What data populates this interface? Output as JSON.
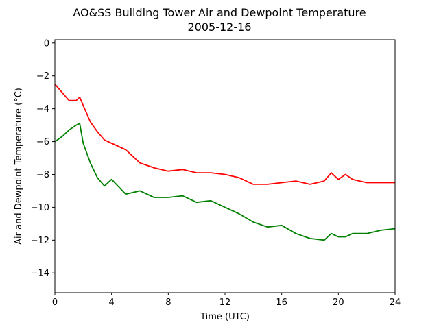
{
  "chart_data": {
    "type": "line",
    "title": "AO&SS Building Tower Air and Dewpoint Temperature",
    "subtitle": "2005-12-16",
    "xlabel": "Time (UTC)",
    "ylabel": "Air and Dewpoint Temperature (°C)",
    "xlim": [
      0,
      24
    ],
    "ylim": [
      -15.2,
      0.2
    ],
    "xticks": [
      0,
      4,
      8,
      12,
      16,
      20,
      24
    ],
    "yticks": [
      0,
      -2,
      -4,
      -6,
      -8,
      -10,
      -12,
      -14
    ],
    "grid": false,
    "x": [
      0,
      0.5,
      1,
      1.5,
      1.75,
      2,
      2.5,
      3,
      3.5,
      4,
      5,
      6,
      7,
      8,
      9,
      10,
      11,
      12,
      13,
      14,
      15,
      16,
      17,
      18,
      19,
      19.5,
      20,
      20.5,
      21,
      22,
      23,
      24
    ],
    "series": [
      {
        "color": "#ff0000",
        "values": [
          -2.5,
          -3.0,
          -3.5,
          -3.5,
          -3.3,
          -3.8,
          -4.8,
          -5.4,
          -5.9,
          -6.1,
          -6.5,
          -7.3,
          -7.6,
          -7.8,
          -7.7,
          -7.9,
          -7.9,
          -8.0,
          -8.2,
          -8.6,
          -8.6,
          -8.5,
          -8.4,
          -8.6,
          -8.4,
          -7.9,
          -8.3,
          -8.0,
          -8.3,
          -8.5,
          -8.5,
          -8.5
        ]
      },
      {
        "color": "#008000",
        "values": [
          -6.0,
          -5.7,
          -5.3,
          -5.0,
          -4.9,
          -6.1,
          -7.3,
          -8.2,
          -8.7,
          -8.3,
          -9.2,
          -9.0,
          -9.4,
          -9.4,
          -9.3,
          -9.7,
          -9.6,
          -10.0,
          -10.4,
          -10.9,
          -11.2,
          -11.1,
          -11.6,
          -11.9,
          -12.0,
          -11.6,
          -11.8,
          -11.8,
          -11.6,
          -11.6,
          -11.4,
          -11.3
        ]
      }
    ]
  }
}
